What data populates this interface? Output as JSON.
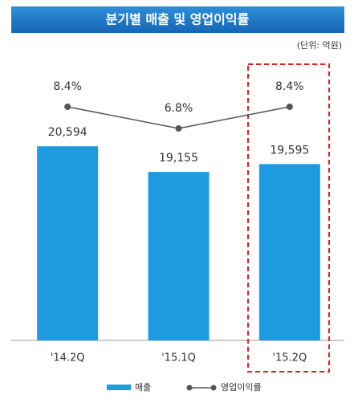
{
  "chart_data": {
    "type": "combo",
    "title": "분기별 매출 및 영업이익률",
    "subtitle": "(단위: 억원)",
    "categories": [
      "'14.2Q",
      "'15.1Q",
      "'15.2Q"
    ],
    "series": [
      {
        "name": "매출",
        "type": "bar",
        "color": "#1e9be0",
        "values": [
          20594,
          19155,
          19595
        ],
        "value_labels": [
          "20,594",
          "19,155",
          "19,595"
        ]
      },
      {
        "name": "영업이익률",
        "type": "line",
        "axis": "y2",
        "color": "#555555",
        "values": [
          8.4,
          6.8,
          8.4
        ],
        "value_labels": [
          "8.4%",
          "6.8%",
          "8.4%"
        ]
      }
    ],
    "ylim": [
      9700,
      22000
    ],
    "y2lim": [
      4,
      10
    ]
  }
}
